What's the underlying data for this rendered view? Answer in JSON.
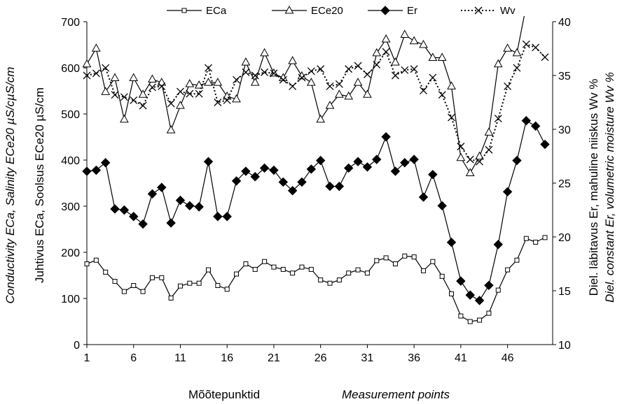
{
  "chart_data": {
    "type": "line",
    "x": [
      1,
      2,
      3,
      4,
      5,
      6,
      7,
      8,
      9,
      10,
      11,
      12,
      13,
      14,
      15,
      16,
      17,
      18,
      19,
      20,
      21,
      22,
      23,
      24,
      25,
      26,
      27,
      28,
      29,
      30,
      31,
      32,
      33,
      34,
      35,
      36,
      37,
      38,
      39,
      40,
      41,
      42,
      43,
      44,
      45,
      46,
      47,
      48,
      49,
      50
    ],
    "xticks": [
      1,
      6,
      11,
      16,
      21,
      26,
      31,
      36,
      41,
      46
    ],
    "xlim": [
      1,
      50
    ],
    "xlabel_et": "Mõõtepunktid",
    "xlabel_en": "Measurement points",
    "ylim_left": [
      0,
      700
    ],
    "yticks_left": [
      0,
      100,
      200,
      300,
      400,
      500,
      600,
      700
    ],
    "ylabel_left_en": "Conductivity ECa, Salinity ECe20 µS/cµS/cm",
    "ylabel_left_et": "Juhtivus ECa, Soolsus ECe20 µS/cm",
    "ylim_right": [
      10,
      40
    ],
    "yticks_right": [
      10,
      15,
      20,
      25,
      30,
      35,
      40
    ],
    "ylabel_right_et": "Diel. läbitavus Er, mahuline niiskus Wv %",
    "ylabel_right_en": "Diel. constant Er, volumetric moisture Wv %",
    "grid": false,
    "legend_position": "top",
    "series": [
      {
        "name": "ECa",
        "axis": "left",
        "color": "#000000",
        "marker": "square-open",
        "line": "solid",
        "values": [
          175,
          183,
          157,
          137,
          115,
          128,
          115,
          145,
          145,
          101,
          127,
          133,
          133,
          162,
          128,
          120,
          153,
          175,
          163,
          180,
          168,
          163,
          155,
          168,
          163,
          140,
          133,
          140,
          155,
          162,
          155,
          182,
          188,
          175,
          192,
          190,
          160,
          180,
          148,
          110,
          62,
          50,
          53,
          68,
          118,
          162,
          183,
          230,
          222,
          232
        ]
      },
      {
        "name": "ECe20",
        "axis": "left",
        "color": "#000000",
        "marker": "triangle-open",
        "line": "solid",
        "values": [
          608,
          642,
          548,
          578,
          488,
          578,
          542,
          575,
          568,
          465,
          518,
          565,
          562,
          568,
          568,
          538,
          532,
          612,
          568,
          632,
          588,
          578,
          615,
          582,
          568,
          488,
          518,
          542,
          538,
          568,
          542,
          632,
          662,
          612,
          672,
          658,
          650,
          622,
          622,
          560,
          405,
          372,
          408,
          460,
          608,
          642,
          632,
          735,
          null,
          null
        ]
      },
      {
        "name": "Er",
        "axis": "right",
        "color": "#000000",
        "marker": "diamond-filled",
        "line": "solid",
        "values": [
          26.1,
          26.2,
          26.9,
          22.6,
          22.5,
          21.9,
          21.2,
          24.0,
          24.6,
          21.3,
          23.4,
          22.9,
          22.8,
          27.0,
          21.9,
          21.9,
          25.2,
          26.1,
          25.6,
          26.4,
          26.2,
          25.1,
          24.3,
          25.1,
          26.3,
          27.1,
          24.7,
          24.7,
          26.4,
          27.0,
          26.5,
          27.2,
          29.3,
          26.1,
          26.9,
          27.2,
          23.7,
          25.8,
          22.9,
          19.5,
          15.9,
          14.6,
          14.1,
          15.5,
          19.3,
          24.2,
          27.1,
          30.8,
          30.3,
          28.6
        ]
      },
      {
        "name": "Wv",
        "axis": "right",
        "color": "#000000",
        "marker": "x",
        "line": "dotted",
        "values": [
          35.0,
          35.2,
          35.7,
          33.2,
          33.0,
          32.7,
          32.2,
          33.9,
          34.0,
          32.4,
          33.5,
          33.3,
          33.3,
          35.7,
          32.5,
          32.7,
          34.6,
          35.3,
          35.0,
          35.3,
          35.2,
          34.6,
          34.0,
          34.8,
          35.4,
          35.6,
          34.0,
          34.2,
          35.6,
          35.9,
          35.1,
          36.0,
          37.2,
          35.0,
          35.5,
          35.6,
          33.6,
          34.8,
          33.2,
          31.1,
          28.4,
          27.2,
          27.0,
          28.1,
          31.0,
          34.0,
          35.7,
          37.9,
          37.6,
          36.7
        ]
      }
    ]
  }
}
